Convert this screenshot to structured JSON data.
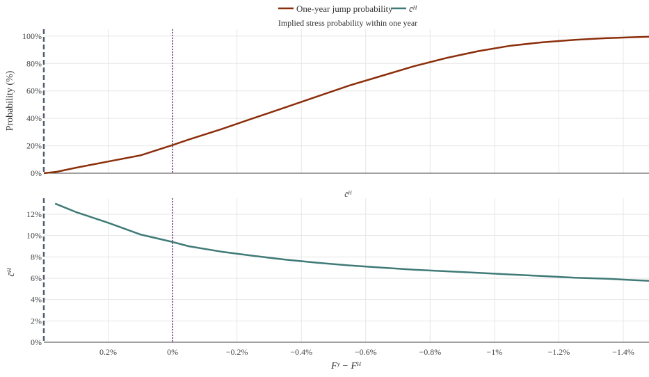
{
  "legend": {
    "items": [
      {
        "label": "One-year jump probability",
        "color": "#8B2E0A"
      },
      {
        "label": "c̄ᴴ",
        "color": "#3F7A77"
      }
    ]
  },
  "x_axis_title": "Fʸ − Fᴴ",
  "chart_data": [
    {
      "type": "line",
      "title": "Implied stress probability within one year",
      "ylabel": "Probability (%)",
      "xlim": [
        0.4,
        -1.48
      ],
      "ylim": [
        0,
        105
      ],
      "yticks": [
        0,
        20,
        40,
        60,
        80,
        100
      ],
      "ytick_labels": [
        "0%",
        "20%",
        "40%",
        "60%",
        "80%",
        "100%"
      ],
      "xticks": [
        0.2,
        0,
        -0.2,
        -0.4,
        -0.6,
        -0.8,
        -1.0,
        -1.2,
        -1.4
      ],
      "xtick_labels": [
        "0.2%",
        "0%",
        "−0.2%",
        "−0.4%",
        "−0.6%",
        "−0.8%",
        "−1%",
        "−1.2%",
        "−1.4%"
      ],
      "grid": true,
      "series": [
        {
          "name": "One-year jump probability",
          "color": "#8B2E0A",
          "x": [
            0.4,
            0.36,
            0.3,
            0.2,
            0.1,
            0.0,
            -0.05,
            -0.15,
            -0.25,
            -0.35,
            -0.45,
            -0.55,
            -0.65,
            -0.75,
            -0.85,
            -0.95,
            -1.05,
            -1.15,
            -1.25,
            -1.35,
            -1.48
          ],
          "y": [
            0,
            1,
            4,
            8.5,
            13,
            20.5,
            24.5,
            32,
            40,
            48,
            56,
            64,
            71,
            78,
            84,
            89,
            93,
            95.5,
            97.3,
            98.5,
            99.5
          ]
        }
      ],
      "vlines": [
        {
          "x": 0.4,
          "style": "dashed",
          "color": "#555c70"
        },
        {
          "x": 0.0,
          "style": "dotted",
          "color": "#6a2f7a"
        }
      ]
    },
    {
      "type": "line",
      "title": "c̄ᴴ",
      "ylabel": "c̄ᴴ",
      "xlabel": "Fʸ − Fᴴ",
      "xlim": [
        0.4,
        -1.48
      ],
      "ylim": [
        0,
        13.5
      ],
      "yticks": [
        0,
        2,
        4,
        6,
        8,
        10,
        12
      ],
      "ytick_labels": [
        "0%",
        "2%",
        "4%",
        "6%",
        "8%",
        "10%",
        "12%"
      ],
      "xticks": [
        0.2,
        0,
        -0.2,
        -0.4,
        -0.6,
        -0.8,
        -1.0,
        -1.2,
        -1.4
      ],
      "xtick_labels": [
        "0.2%",
        "0%",
        "−0.2%",
        "−0.4%",
        "−0.6%",
        "−0.8%",
        "−1%",
        "−1.2%",
        "−1.4%"
      ],
      "grid": true,
      "series": [
        {
          "name": "c̄ᴴ",
          "color": "#3F7A77",
          "x": [
            0.365,
            0.3,
            0.2,
            0.1,
            0.0,
            -0.05,
            -0.15,
            -0.25,
            -0.35,
            -0.45,
            -0.55,
            -0.65,
            -0.75,
            -0.85,
            -0.95,
            -1.05,
            -1.15,
            -1.25,
            -1.35,
            -1.48
          ],
          "y": [
            13.0,
            12.2,
            11.2,
            10.1,
            9.4,
            9.0,
            8.5,
            8.1,
            7.75,
            7.45,
            7.2,
            7.0,
            6.8,
            6.65,
            6.5,
            6.35,
            6.2,
            6.05,
            5.95,
            5.75
          ]
        }
      ],
      "vlines": [
        {
          "x": 0.4,
          "style": "dashed",
          "color": "#555c70"
        },
        {
          "x": 0.0,
          "style": "dotted",
          "color": "#6a2f7a"
        }
      ]
    }
  ]
}
